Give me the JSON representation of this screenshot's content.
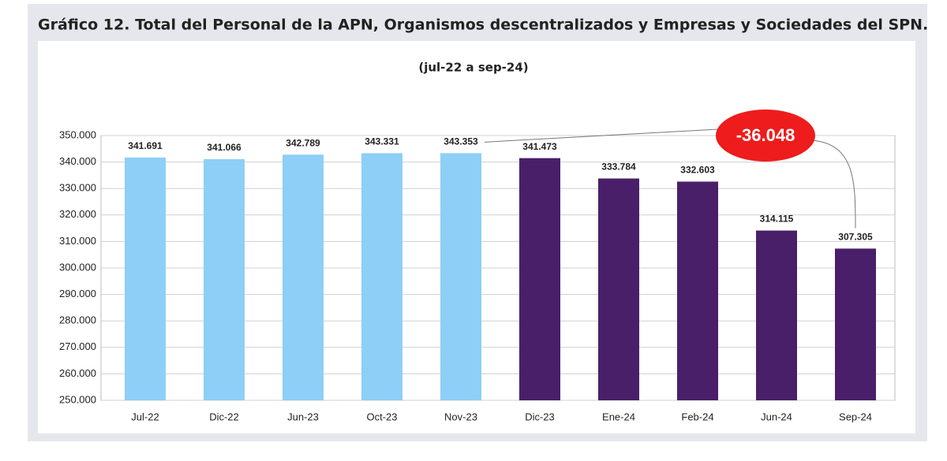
{
  "chart_data": {
    "type": "bar",
    "title": "Gráfico 12. Total del Personal de la APN, Organismos descentralizados y Empresas y Sociedades del SPN.",
    "subtitle": "(jul-22 a sep-24)",
    "categories": [
      "Jul-22",
      "Dic-22",
      "Jun-23",
      "Oct-23",
      "Nov-23",
      "Dic-23",
      "Ene-24",
      "Feb-24",
      "Jun-24",
      "Sep-24"
    ],
    "values": [
      341691,
      341066,
      342789,
      343331,
      343353,
      341473,
      333784,
      332603,
      314115,
      307305
    ],
    "value_labels": [
      "341.691",
      "341.066",
      "342.789",
      "343.331",
      "343.353",
      "341.473",
      "333.784",
      "332.603",
      "314.115",
      "307.305"
    ],
    "colors": [
      "#8dcff6",
      "#8dcff6",
      "#8dcff6",
      "#8dcff6",
      "#8dcff6",
      "#4a1f6a",
      "#4a1f6a",
      "#4a1f6a",
      "#4a1f6a",
      "#4a1f6a"
    ],
    "ylim": [
      250000,
      350000
    ],
    "yticks": [
      {
        "value": 250000,
        "label": "250.000"
      },
      {
        "value": 260000,
        "label": "260.000"
      },
      {
        "value": 270000,
        "label": "270.000"
      },
      {
        "value": 280000,
        "label": "280.000"
      },
      {
        "value": 290000,
        "label": "290.000"
      },
      {
        "value": 300000,
        "label": "300.000"
      },
      {
        "value": 310000,
        "label": "310.000"
      },
      {
        "value": 320000,
        "label": "320.000"
      },
      {
        "value": 330000,
        "label": "330.000"
      },
      {
        "value": 340000,
        "label": "340.000"
      },
      {
        "value": 350000,
        "label": "350.000"
      }
    ],
    "grid": true,
    "annotation": "-36.048"
  }
}
